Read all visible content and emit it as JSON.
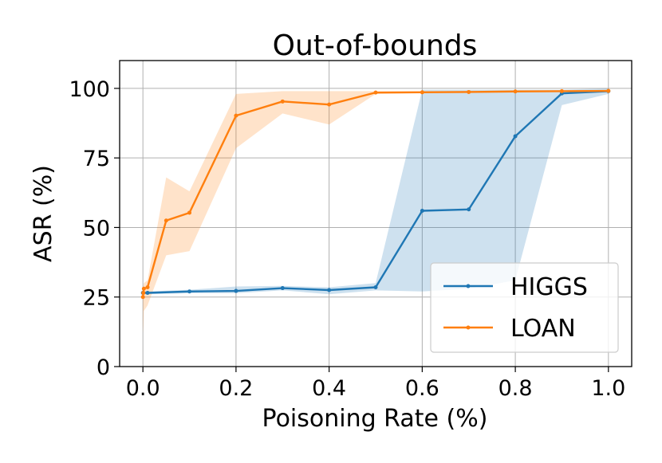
{
  "chart_data": {
    "type": "line",
    "title": "Out-of-bounds",
    "xlabel": "Poisoning Rate (%)",
    "ylabel": "ASR (%)",
    "xlim": [
      -0.05,
      1.05
    ],
    "ylim": [
      0,
      110
    ],
    "xticks": [
      0.0,
      0.2,
      0.4,
      0.6,
      0.8,
      1.0
    ],
    "xtick_labels": [
      "0.0",
      "0.2",
      "0.4",
      "0.6",
      "0.8",
      "1.0"
    ],
    "yticks": [
      0,
      25,
      50,
      75,
      100
    ],
    "ytick_labels": [
      "0",
      "25",
      "50",
      "75",
      "100"
    ],
    "grid": true,
    "legend_position": "lower-right",
    "series": [
      {
        "name": "HIGGS",
        "color": "#1f77b4",
        "x": [
          0.0,
          0.01,
          0.1,
          0.2,
          0.3,
          0.4,
          0.5,
          0.6,
          0.7,
          0.8,
          0.9,
          1.0
        ],
        "y": [
          26.5,
          26.5,
          27.0,
          27.2,
          28.2,
          27.5,
          28.5,
          56.0,
          56.5,
          82.8,
          98.2,
          99.0
        ],
        "lower": [
          26.0,
          26.0,
          26.4,
          26.4,
          27.4,
          26.0,
          27.4,
          27.0,
          28.0,
          31.0,
          94.0,
          98.0
        ],
        "upper": [
          27.0,
          27.0,
          27.6,
          28.8,
          29.0,
          28.5,
          30.0,
          99.5,
          99.5,
          99.5,
          99.5,
          100.0
        ]
      },
      {
        "name": "LOAN",
        "color": "#ff7f0e",
        "x": [
          0.0,
          0.001,
          0.002,
          0.01,
          0.05,
          0.1,
          0.2,
          0.3,
          0.4,
          0.5,
          0.6,
          0.7,
          0.8,
          0.9,
          1.0
        ],
        "y": [
          25.0,
          26.5,
          28.0,
          28.5,
          52.5,
          55.3,
          90.2,
          95.3,
          94.2,
          98.5,
          98.6,
          98.7,
          98.9,
          99.0,
          99.1
        ],
        "lower": [
          12.0,
          15.0,
          20.0,
          22.0,
          40.0,
          41.5,
          78.5,
          91.0,
          87.0,
          98.0,
          98.3,
          98.5,
          98.7,
          98.8,
          98.9
        ],
        "upper": [
          28.0,
          29.0,
          30.0,
          31.0,
          68.0,
          63.0,
          98.0,
          99.0,
          99.0,
          99.0,
          99.0,
          99.1,
          99.2,
          99.3,
          99.4
        ]
      }
    ]
  }
}
